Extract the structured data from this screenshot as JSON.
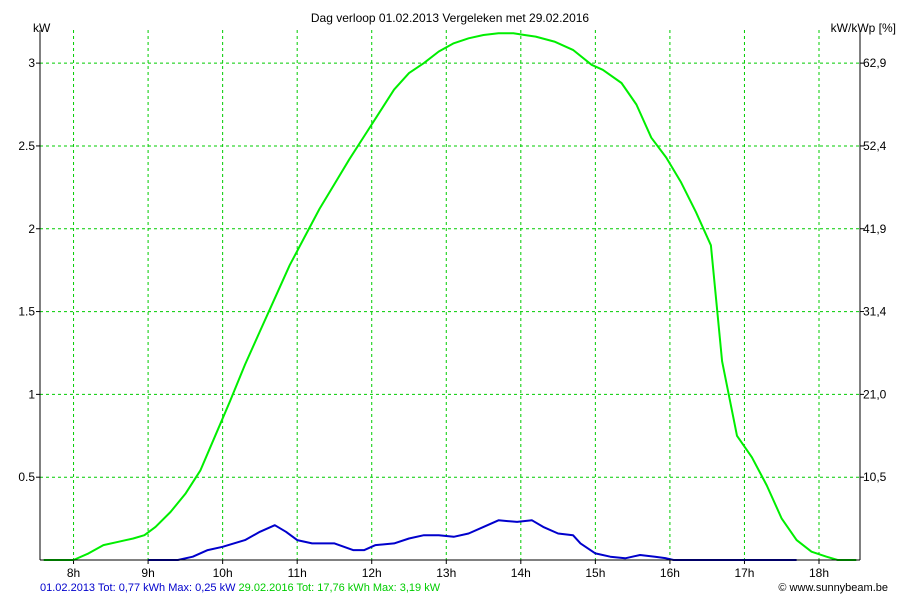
{
  "chart_data": {
    "type": "line",
    "title": "Dag  verloop 01.02.2013   Vergeleken met 29.02.2016",
    "ylabel_left": "kW",
    "ylabel_right": "kW/kWp [%]",
    "xlim": [
      7.55,
      18.55
    ],
    "ylim": [
      0,
      3.2
    ],
    "x_ticks": [
      8,
      9,
      10,
      11,
      12,
      13,
      14,
      15,
      16,
      17,
      18
    ],
    "x_tick_labels": [
      "8h",
      "9h",
      "10h",
      "11h",
      "12h",
      "13h",
      "14h",
      "15h",
      "16h",
      "17h",
      "18h"
    ],
    "y_ticks": [
      0.5,
      1,
      1.5,
      2,
      2.5,
      3
    ],
    "y_tick_labels": [
      "0.5",
      "1",
      "1.5",
      "2",
      "2.5",
      "3"
    ],
    "y2_tick_labels": [
      "10,5",
      "21,0",
      "31,4",
      "41,9",
      "52,4",
      "62,9"
    ],
    "grid": true,
    "colors": {
      "green": "#00ee00",
      "blue": "#0000cc",
      "grid": "#00cc00",
      "axis": "#000000"
    },
    "series": [
      {
        "name": "29.02.2016",
        "color": "#00ee00",
        "x": [
          7.6,
          8.0,
          8.2,
          8.4,
          8.6,
          8.8,
          8.95,
          9.1,
          9.3,
          9.5,
          9.7,
          9.9,
          10.1,
          10.3,
          10.5,
          10.7,
          10.9,
          11.1,
          11.3,
          11.5,
          11.7,
          11.9,
          12.1,
          12.3,
          12.5,
          12.7,
          12.9,
          13.1,
          13.3,
          13.5,
          13.7,
          13.9,
          14.05,
          14.2,
          14.45,
          14.7,
          14.95,
          15.1,
          15.35,
          15.55,
          15.75,
          15.95,
          16.15,
          16.35,
          16.55,
          16.7,
          16.9,
          17.1,
          17.3,
          17.5,
          17.7,
          17.9,
          18.1,
          18.25,
          18.5
        ],
        "values": [
          0.0,
          0.0,
          0.04,
          0.09,
          0.11,
          0.13,
          0.15,
          0.2,
          0.29,
          0.4,
          0.54,
          0.75,
          0.96,
          1.18,
          1.38,
          1.58,
          1.78,
          1.95,
          2.12,
          2.27,
          2.42,
          2.56,
          2.7,
          2.84,
          2.94,
          3.0,
          3.07,
          3.12,
          3.15,
          3.17,
          3.18,
          3.18,
          3.17,
          3.16,
          3.13,
          3.08,
          2.99,
          2.96,
          2.88,
          2.75,
          2.55,
          2.43,
          2.28,
          2.1,
          1.9,
          1.2,
          0.75,
          0.62,
          0.45,
          0.25,
          0.12,
          0.05,
          0.02,
          0.0,
          0.0
        ]
      },
      {
        "name": "01.02.2013",
        "color": "#0000cc",
        "x": [
          9.0,
          9.4,
          9.6,
          9.8,
          10.0,
          10.3,
          10.5,
          10.7,
          10.85,
          11.0,
          11.2,
          11.5,
          11.75,
          11.9,
          12.05,
          12.3,
          12.5,
          12.7,
          12.9,
          13.1,
          13.3,
          13.5,
          13.7,
          13.95,
          14.15,
          14.3,
          14.5,
          14.7,
          14.8,
          15.0,
          15.2,
          15.4,
          15.6,
          15.8,
          15.95,
          16.05,
          17.0,
          17.7
        ],
        "values": [
          0.0,
          0.0,
          0.02,
          0.06,
          0.08,
          0.12,
          0.17,
          0.21,
          0.17,
          0.12,
          0.1,
          0.1,
          0.06,
          0.06,
          0.09,
          0.1,
          0.13,
          0.15,
          0.15,
          0.14,
          0.16,
          0.2,
          0.24,
          0.23,
          0.24,
          0.2,
          0.16,
          0.15,
          0.1,
          0.04,
          0.02,
          0.01,
          0.03,
          0.02,
          0.01,
          0.0,
          0.0,
          0.0
        ]
      }
    ]
  },
  "footer": {
    "blue_text": "01.02.2013 Tot: 0,77 kWh Max: 0,25 kW",
    "green_text": "29.02.2016 Tot: 17,76 kWh Max: 3,19 kW",
    "credit": "© www.sunnybeam.be"
  }
}
